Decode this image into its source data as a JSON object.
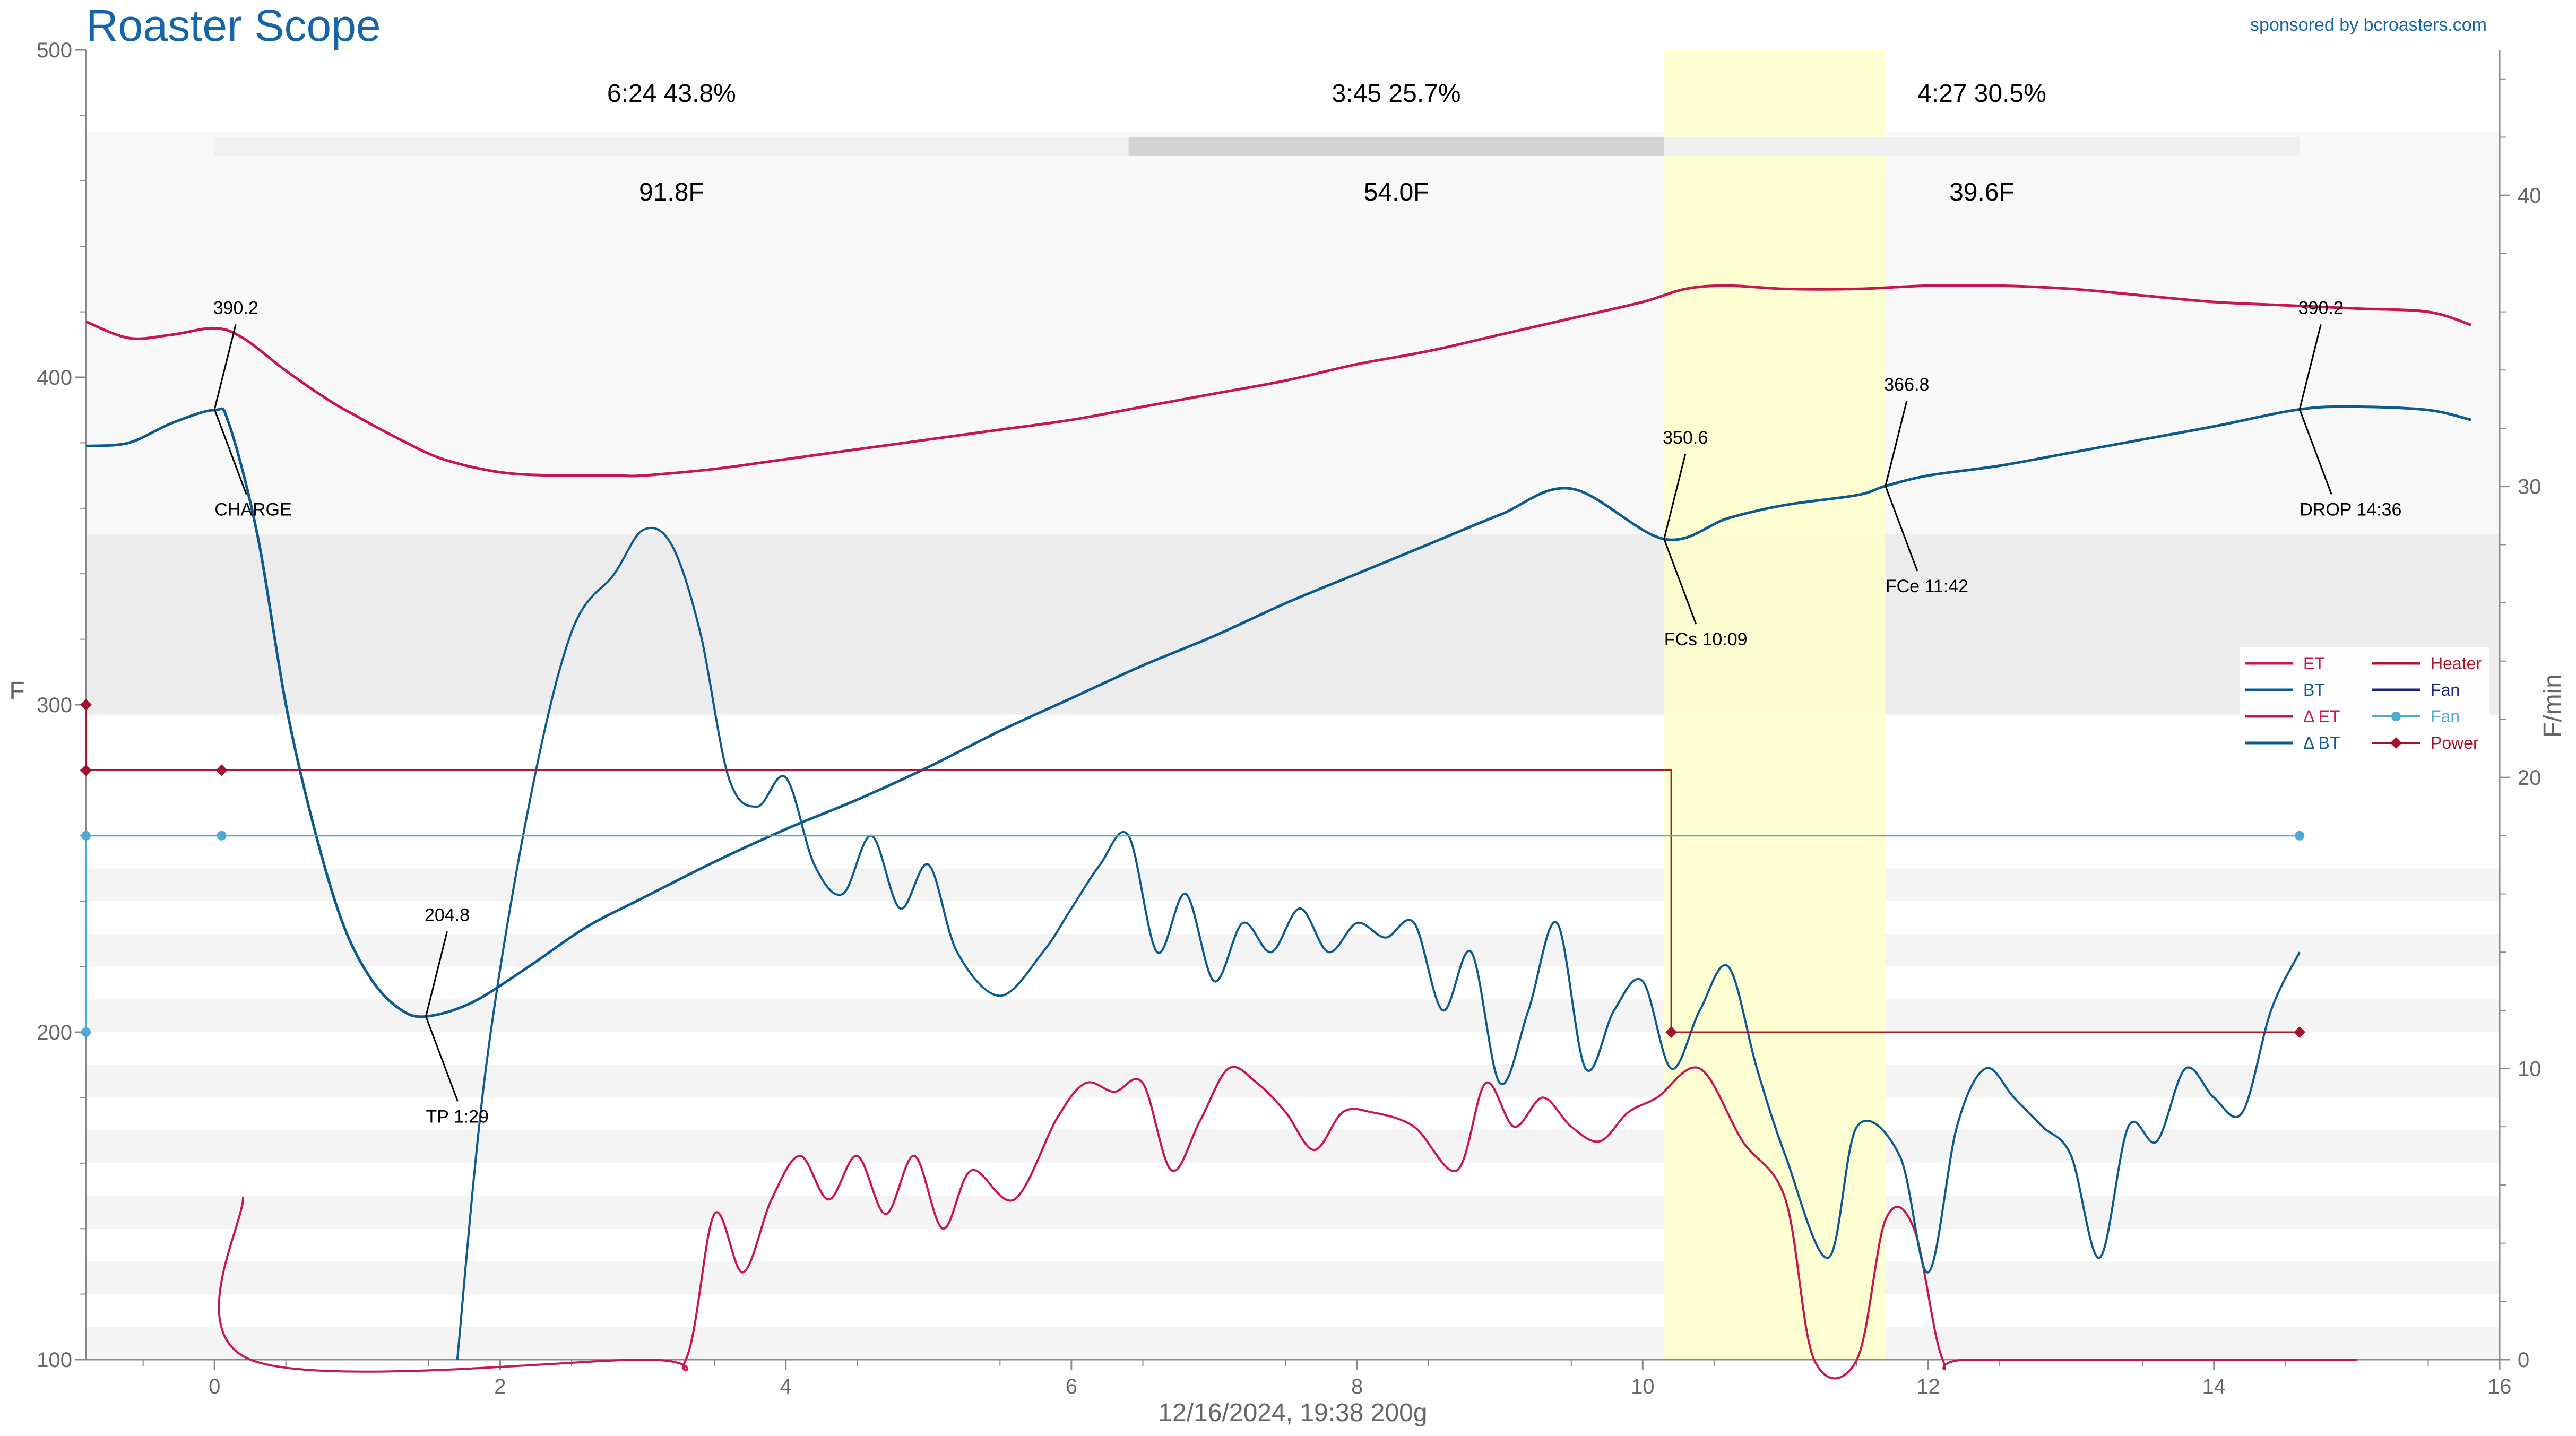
{
  "header": {
    "title": "Roaster Scope",
    "sponsor": "sponsored by bcroasters.com"
  },
  "footer": {
    "caption": "12/16/2024, 19:38   200g"
  },
  "colors": {
    "et": "#c8174f",
    "bt": "#0d5a8f",
    "det": "#c8174f",
    "dbt": "#0d5a8f",
    "heater": "#b0172f",
    "fan_power": "#1a237e",
    "fan": "#4fa9d2",
    "power": "#a0122e",
    "highlight": "#ffffcc",
    "title": "#1565a8"
  },
  "chart_data": {
    "type": "line",
    "xlim": [
      -0.9,
      16
    ],
    "ylim": [
      100,
      500
    ],
    "y2lim": [
      0,
      45
    ],
    "xticks": [
      0,
      2,
      4,
      6,
      8,
      10,
      12,
      14,
      16
    ],
    "yticks": [
      100,
      200,
      300,
      400,
      500
    ],
    "y2ticks": [
      0,
      10,
      20,
      30,
      40
    ],
    "ylabel": "F",
    "y2label": "F/min",
    "highlight_band": [
      10.15,
      11.7
    ],
    "phases": [
      {
        "label": "6:24  43.8%",
        "delta": "91.8F",
        "x0": 0,
        "x1": 6.4
      },
      {
        "label": "3:45  25.7%",
        "delta": "54.0F",
        "x0": 6.4,
        "x1": 10.15
      },
      {
        "label": "4:27  30.5%",
        "delta": "39.6F",
        "x0": 10.15,
        "x1": 14.6
      }
    ],
    "events": [
      {
        "name": "CHARGE",
        "value": "390.2",
        "x": 0,
        "y": 390.2,
        "below": true
      },
      {
        "name": "TP 1:29",
        "value": "204.8",
        "x": 1.48,
        "y": 204.8,
        "below": true
      },
      {
        "name": "FCs 10:09",
        "value": "350.6",
        "x": 10.15,
        "y": 350.6,
        "below": true
      },
      {
        "name": "FCe 11:42",
        "value": "366.8",
        "x": 11.7,
        "y": 366.8,
        "below": true
      },
      {
        "name": "DROP 14:36",
        "value": "390.2",
        "x": 14.6,
        "y": 390.2,
        "below": true
      }
    ],
    "series": [
      {
        "name": "ET",
        "axis": "left",
        "x": [
          -0.9,
          -0.6,
          -0.3,
          0,
          0.2,
          0.5,
          0.8,
          1.0,
          1.3,
          1.6,
          2.0,
          2.4,
          2.8,
          3.0,
          3.5,
          4.0,
          4.5,
          5.0,
          5.5,
          6.0,
          6.5,
          7.0,
          7.5,
          8.0,
          8.5,
          9.0,
          9.5,
          10.0,
          10.3,
          10.6,
          11.0,
          11.5,
          12.0,
          12.5,
          13.0,
          13.5,
          14.0,
          14.5,
          15.0,
          15.5,
          15.8
        ],
        "y": [
          417,
          412,
          413,
          415,
          412,
          402,
          393,
          388,
          381,
          375,
          371,
          370,
          370,
          370,
          372,
          375,
          378,
          381,
          384,
          387,
          391,
          395,
          399,
          404,
          408,
          413,
          418,
          423,
          427,
          428,
          427,
          427,
          428,
          428,
          427,
          425,
          423,
          422,
          421,
          420,
          416
        ]
      },
      {
        "name": "BT",
        "axis": "left",
        "x": [
          -0.9,
          -0.6,
          -0.3,
          0,
          0.1,
          0.3,
          0.5,
          0.7,
          0.9,
          1.1,
          1.3,
          1.48,
          1.8,
          2.2,
          2.6,
          3.0,
          3.5,
          4.0,
          4.5,
          5.0,
          5.5,
          6.0,
          6.5,
          7.0,
          7.5,
          8.0,
          8.5,
          9.0,
          9.5,
          10.15,
          10.6,
          11.0,
          11.5,
          11.7,
          12.0,
          12.5,
          13.0,
          13.5,
          14.0,
          14.6,
          15.0,
          15.5,
          15.8
        ],
        "y": [
          379,
          380,
          386,
          390,
          386,
          352,
          300,
          262,
          233,
          216,
          207,
          204.8,
          209,
          220,
          232,
          241,
          252,
          262,
          271,
          281,
          292,
          302,
          312,
          321,
          331,
          340,
          349,
          358,
          366,
          350.6,
          357,
          361,
          364,
          366.8,
          370,
          373,
          377,
          381,
          385,
          390.2,
          391,
          390,
          387
        ]
      },
      {
        "name": "ΔET",
        "axis": "right",
        "x": [
          0.2,
          0.25,
          3.0,
          3.3,
          3.5,
          3.7,
          3.9,
          4.1,
          4.3,
          4.5,
          4.7,
          4.9,
          5.1,
          5.3,
          5.6,
          5.9,
          6.1,
          6.3,
          6.5,
          6.7,
          6.9,
          7.1,
          7.3,
          7.5,
          7.7,
          7.9,
          8.1,
          8.4,
          8.7,
          8.9,
          9.1,
          9.3,
          9.5,
          9.7,
          9.9,
          10.1,
          10.4,
          10.7,
          11.0,
          11.2,
          11.5,
          11.7,
          11.9,
          12.1,
          12.3,
          14.0,
          15.0
        ],
        "y": [
          5.6,
          0,
          0,
          0,
          5,
          3,
          5.5,
          7,
          5.5,
          7,
          5,
          7,
          4.5,
          6.5,
          5.5,
          8.3,
          9.5,
          9.2,
          9.5,
          6.5,
          8.2,
          10,
          9.5,
          8.5,
          7.2,
          8.5,
          8.5,
          8,
          6.5,
          9.5,
          8,
          9,
          8,
          7.5,
          8.5,
          9,
          10,
          7.5,
          5.5,
          0,
          0,
          4.8,
          4.5,
          0,
          0,
          0,
          0
        ]
      },
      {
        "name": "ΔBT",
        "axis": "right",
        "x": [
          1.7,
          1.9,
          2.2,
          2.5,
          2.8,
          3.0,
          3.2,
          3.4,
          3.6,
          3.8,
          4.0,
          4.2,
          4.4,
          4.6,
          4.8,
          5.0,
          5.2,
          5.5,
          5.8,
          6.0,
          6.2,
          6.4,
          6.6,
          6.8,
          7.0,
          7.2,
          7.4,
          7.6,
          7.8,
          8.0,
          8.2,
          8.4,
          8.6,
          8.8,
          9.0,
          9.2,
          9.4,
          9.6,
          9.8,
          10.0,
          10.2,
          10.4,
          10.6,
          10.8,
          11.0,
          11.3,
          11.5,
          11.8,
          12.0,
          12.2,
          12.4,
          12.6,
          12.8,
          13.0,
          13.2,
          13.4,
          13.6,
          13.8,
          14.0,
          14.2,
          14.4,
          14.6
        ],
        "y": [
          0,
          10,
          19,
          25,
          27,
          28.5,
          28,
          25,
          20,
          19,
          20,
          17,
          16,
          18,
          15.5,
          17,
          14,
          12.5,
          14,
          15.5,
          17,
          18,
          14,
          16,
          13,
          15,
          14,
          15.5,
          14,
          15,
          14.5,
          15,
          12,
          14,
          9.5,
          12,
          15,
          10,
          12,
          13,
          10,
          12,
          13.5,
          10,
          7,
          3.5,
          8,
          7,
          3,
          8,
          10,
          9,
          8,
          7,
          3.5,
          8,
          7.5,
          10,
          9,
          8.5,
          12,
          14
        ]
      },
      {
        "name": "Heater",
        "axis": "left",
        "step": true,
        "x": [
          -0.9,
          -0.9,
          0.05,
          10.2,
          10.2,
          14.6
        ],
        "y": [
          300,
          280,
          280,
          280,
          200,
          200
        ]
      },
      {
        "name": "Fan",
        "axis": "left",
        "step": true,
        "x": [
          -0.9,
          -0.9,
          0.05,
          14.6
        ],
        "y": [
          200,
          260,
          260,
          260
        ]
      },
      {
        "name": "Power",
        "axis": "left",
        "markers": true,
        "x": [
          -0.9,
          -0.9,
          0.05,
          10.2,
          14.6
        ],
        "y": [
          300,
          280,
          280,
          200,
          200
        ]
      }
    ],
    "legend": {
      "position": "right",
      "entries": [
        {
          "label": "ET",
          "color": "#c8174f",
          "style": "line"
        },
        {
          "label": "Heater",
          "color": "#b0172f",
          "style": "line"
        },
        {
          "label": "BT",
          "color": "#0d5a8f",
          "style": "line"
        },
        {
          "label": "Fan",
          "color": "#1a237e",
          "style": "line"
        },
        {
          "label": "Δ ET",
          "color": "#c8174f",
          "style": "line"
        },
        {
          "label": "Fan",
          "color": "#4fa9d2",
          "style": "dot"
        },
        {
          "label": "Δ BT",
          "color": "#0d5a8f",
          "style": "line"
        },
        {
          "label": "Power",
          "color": "#a0122e",
          "style": "diamond"
        }
      ]
    }
  }
}
